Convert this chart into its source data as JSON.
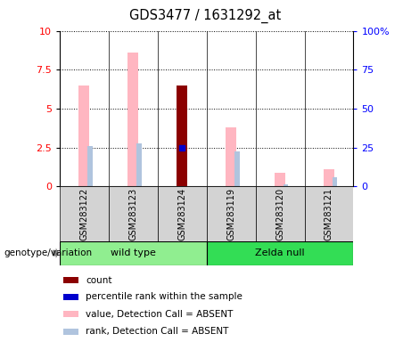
{
  "title": "GDS3477 / 1631292_at",
  "samples": [
    "GSM283122",
    "GSM283123",
    "GSM283124",
    "GSM283119",
    "GSM283120",
    "GSM283121"
  ],
  "ylim_left": [
    0,
    10
  ],
  "ylim_right": [
    0,
    100
  ],
  "yticks_left": [
    0,
    2.5,
    5,
    7.5,
    10
  ],
  "yticks_right": [
    0,
    25,
    50,
    75,
    100
  ],
  "ytick_labels_left": [
    "0",
    "2.5",
    "5",
    "7.5",
    "10"
  ],
  "ytick_labels_right": [
    "0",
    "25",
    "50",
    "75",
    "100%"
  ],
  "value_absent": [
    6.5,
    8.6,
    null,
    3.8,
    0.85,
    1.1
  ],
  "rank_absent": [
    2.6,
    2.75,
    null,
    2.25,
    0.12,
    0.6
  ],
  "count": [
    null,
    null,
    6.5,
    null,
    null,
    null
  ],
  "percentile_rank": [
    null,
    null,
    2.5,
    null,
    null,
    null
  ],
  "count_color": "#8B0000",
  "percentile_color": "#0000CD",
  "value_absent_color": "#FFB6C1",
  "rank_absent_color": "#B0C4DE",
  "bg_label": "#d3d3d3",
  "wt_color": "#90EE90",
  "zn_color": "#33DD55",
  "legend_items": [
    "count",
    "percentile rank within the sample",
    "value, Detection Call = ABSENT",
    "rank, Detection Call = ABSENT"
  ],
  "legend_colors": [
    "#8B0000",
    "#0000CD",
    "#FFB6C1",
    "#B0C4DE"
  ]
}
